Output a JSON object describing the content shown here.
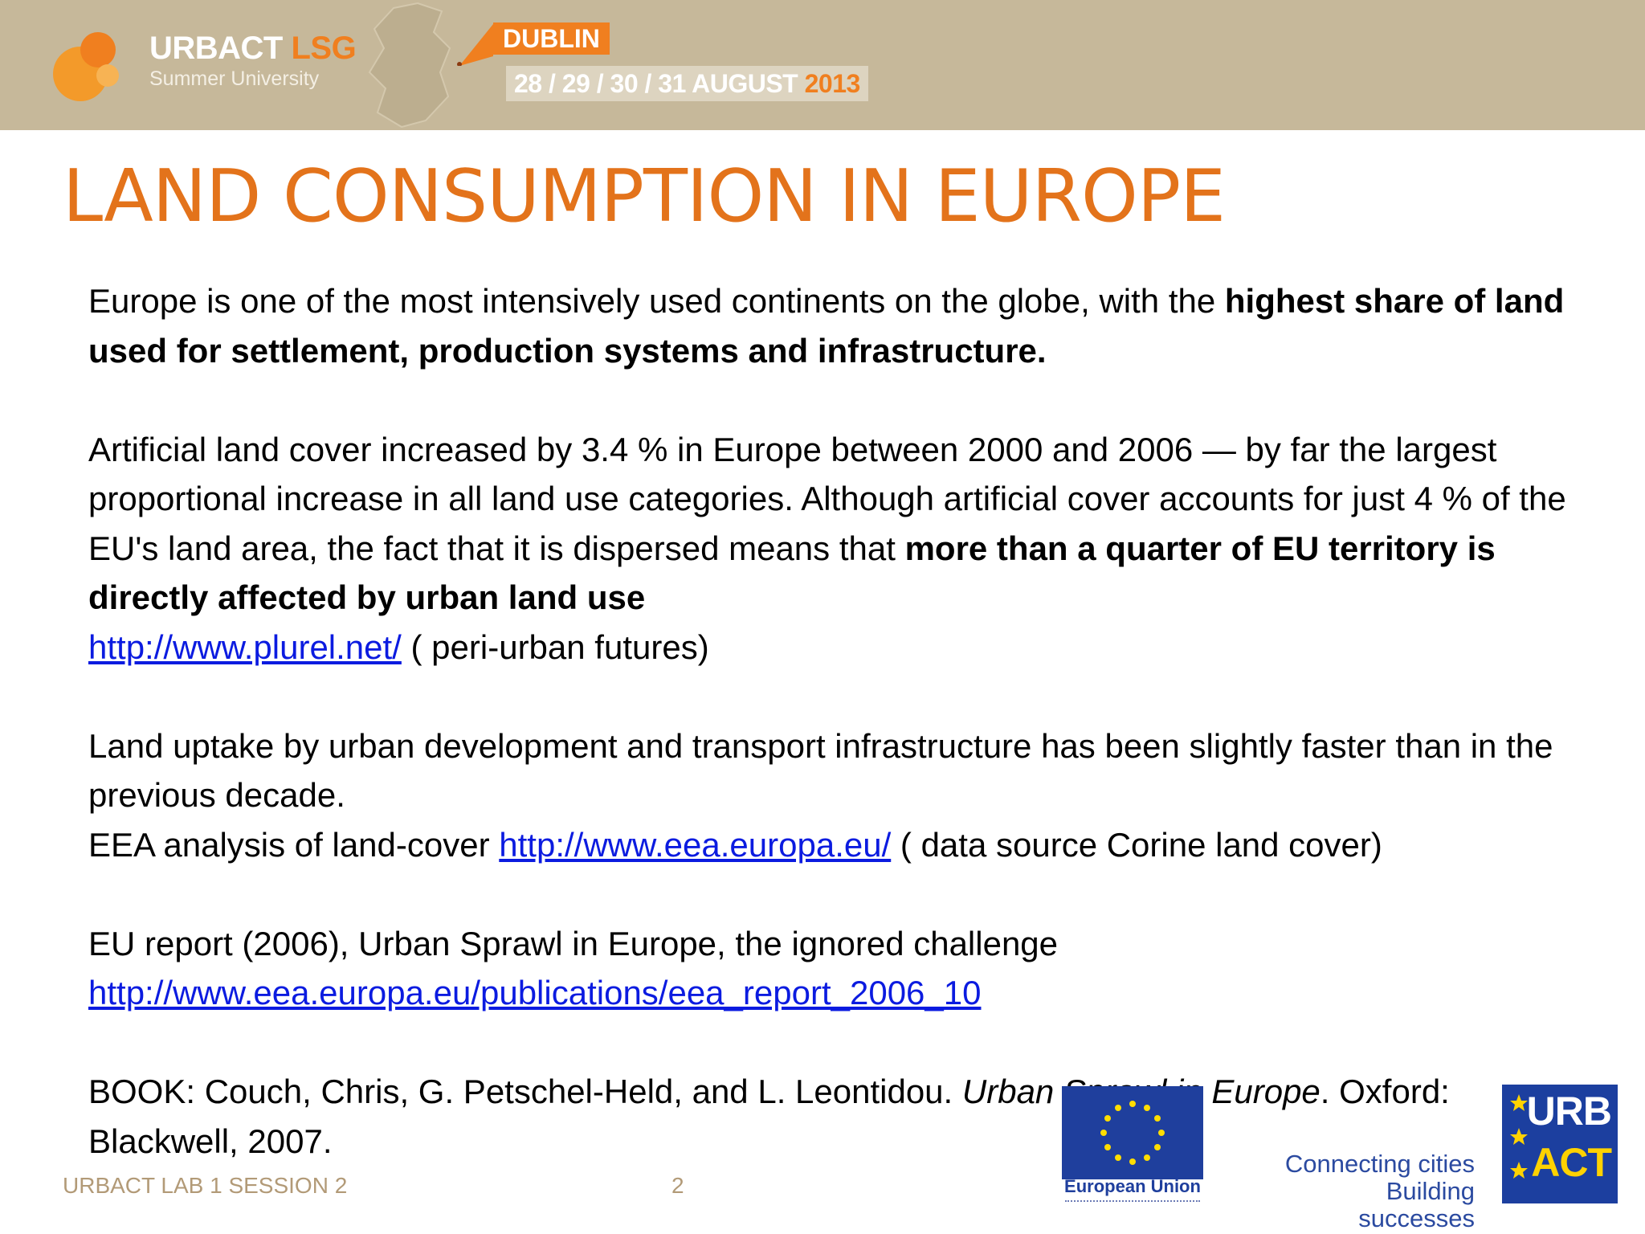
{
  "header": {
    "logo_main": "URBACT",
    "logo_accent": "LSG",
    "logo_sub": "Summer University",
    "city": "DUBLIN",
    "dates": "28 / 29 / 30 / 31 AUGUST",
    "year": "2013"
  },
  "title": "LAND CONSUMPTION IN EUROPE",
  "body": {
    "p1_a": "Europe is one of the most intensively used continents on the globe, with the ",
    "p1_bold": "highest share of land used for settlement, production systems and infrastructure.",
    "p2_a": "Artificial land cover increased by 3.4 % in Europe between 2000 and 2006 — by far the largest proportional increase in all land use categories. Although artificial cover accounts for just 4 % of the EU's land area, the fact that it is dispersed means that ",
    "p2_bold": "more than a quarter of EU territory is directly affected by urban land use",
    "p2_link": "http://www.plurel.net/",
    "p2_link_note": " ( peri-urban futures)",
    "p3_a": "Land uptake by urban development and transport infrastructure has been slightly faster than in the previous decade.",
    "p3_b": "EEA analysis of land-cover ",
    "p3_link": "http://www.eea.europa.eu/",
    "p3_link_note": " ( data source Corine land cover)",
    "p4_a": "EU report (2006), Urban Sprawl in Europe, the ignored challenge",
    "p4_link": "http://www.eea.europa.eu/publications/eea_report_2006_10",
    "p5_a": "BOOK: Couch, Chris, G. Petschel-Held, and L. Leontidou. ",
    "p5_italic": "Urban Sprawl in Europe",
    "p5_b": ". Oxford: Blackwell, 2007."
  },
  "footer": {
    "left": "URBACT LAB 1 SESSION 2",
    "page": "2",
    "eu_label": "European Union",
    "slogan_1": "Connecting cities",
    "slogan_2": "Building successes",
    "urbact_1": "URB",
    "urbact_2": "ACT"
  },
  "colors": {
    "title": "#e3731b",
    "header_bg": "#c6b89a",
    "link": "#0b1be0",
    "accent_orange": "#f07f1f",
    "eu_blue": "#1f3f9d"
  }
}
